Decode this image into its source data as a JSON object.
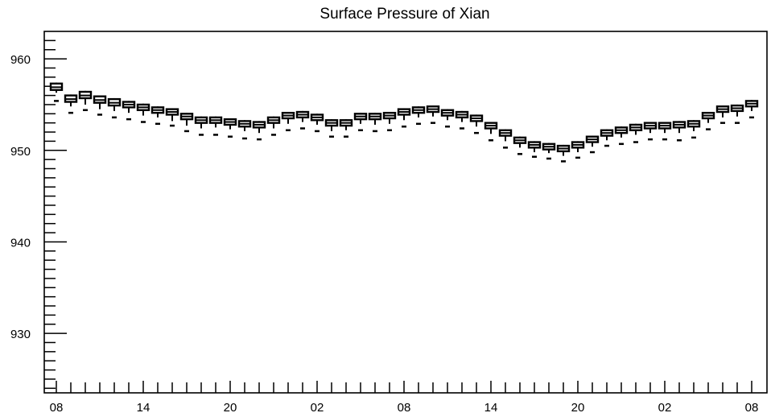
{
  "chart_data": {
    "type": "boxplot",
    "title": "Surface Pressure of Xian",
    "xlabel": "",
    "ylabel": "",
    "ylim": [
      923.5,
      963
    ],
    "y_ticks": [
      930,
      940,
      950,
      960
    ],
    "x_tick_labels": [
      "08",
      "14",
      "20",
      "02",
      "08",
      "14",
      "20",
      "02",
      "08"
    ],
    "x_tick_hours": [
      0,
      6,
      12,
      18,
      24,
      30,
      36,
      42,
      48
    ],
    "grid": false,
    "series": [
      {
        "x_hours": [
          0,
          1,
          2,
          3,
          4,
          5,
          6,
          7,
          8,
          9,
          10,
          11,
          12,
          13,
          14,
          15,
          16,
          17,
          18,
          19,
          20,
          21,
          22,
          23,
          24,
          25,
          26,
          27,
          28,
          29,
          30,
          31,
          32,
          33,
          34,
          35,
          36,
          37,
          38,
          39,
          40,
          41,
          42,
          43,
          44,
          45,
          46,
          47,
          48
        ],
        "median": [
          956.9,
          955.6,
          956.0,
          955.5,
          955.2,
          955.0,
          954.7,
          954.4,
          954.2,
          953.7,
          953.3,
          953.3,
          953.1,
          952.9,
          952.8,
          953.3,
          953.8,
          953.9,
          953.6,
          953.0,
          953.0,
          953.7,
          953.7,
          953.8,
          954.2,
          954.4,
          954.5,
          954.1,
          953.9,
          953.5,
          952.7,
          951.9,
          951.1,
          950.6,
          950.4,
          950.2,
          950.6,
          951.2,
          951.9,
          952.2,
          952.5,
          952.7,
          952.7,
          952.8,
          952.9,
          953.8,
          954.5,
          954.6,
          955.1
        ],
        "q1": [
          956.6,
          955.3,
          955.7,
          955.2,
          954.9,
          954.7,
          954.4,
          954.1,
          953.9,
          953.4,
          953.0,
          953.0,
          952.8,
          952.6,
          952.5,
          953.0,
          953.5,
          953.6,
          953.3,
          952.7,
          952.7,
          953.4,
          953.4,
          953.5,
          953.9,
          954.1,
          954.2,
          953.8,
          953.6,
          953.2,
          952.4,
          951.6,
          950.8,
          950.3,
          950.1,
          949.9,
          950.3,
          950.9,
          951.6,
          951.9,
          952.2,
          952.4,
          952.4,
          952.5,
          952.6,
          953.5,
          954.2,
          954.3,
          954.8
        ],
        "q3": [
          957.3,
          956.0,
          956.4,
          955.9,
          955.6,
          955.3,
          955.0,
          954.7,
          954.5,
          954.0,
          953.6,
          953.6,
          953.4,
          953.2,
          953.1,
          953.6,
          954.1,
          954.2,
          953.9,
          953.3,
          953.3,
          954.0,
          954.0,
          954.1,
          954.5,
          954.7,
          954.8,
          954.4,
          954.2,
          953.8,
          953.0,
          952.2,
          951.4,
          950.9,
          950.7,
          950.5,
          950.9,
          951.5,
          952.2,
          952.5,
          952.8,
          953.0,
          953.0,
          953.1,
          953.2,
          954.1,
          954.8,
          954.9,
          955.4
        ],
        "whisker_low": [
          956.3,
          954.8,
          955.0,
          954.5,
          954.3,
          954.1,
          953.8,
          953.6,
          953.2,
          952.7,
          952.4,
          952.5,
          952.3,
          952.1,
          951.9,
          952.4,
          952.9,
          953.1,
          952.8,
          952.1,
          952.2,
          952.9,
          952.8,
          952.9,
          953.3,
          953.6,
          953.7,
          953.3,
          953.1,
          952.6,
          951.8,
          951.0,
          950.3,
          949.8,
          949.7,
          949.4,
          949.8,
          950.4,
          951.1,
          951.4,
          951.7,
          951.9,
          951.9,
          951.9,
          952.1,
          953.0,
          953.6,
          953.7,
          954.3
        ],
        "whisker_high": [
          957.4,
          956.1,
          956.5,
          956.0,
          955.7,
          955.4,
          955.1,
          954.8,
          954.6,
          954.1,
          953.7,
          953.7,
          953.5,
          953.3,
          953.2,
          953.7,
          954.2,
          954.3,
          954.0,
          953.4,
          953.4,
          954.1,
          954.1,
          954.2,
          954.6,
          954.8,
          954.9,
          954.5,
          954.3,
          953.9,
          953.1,
          952.3,
          951.5,
          951.0,
          950.8,
          950.6,
          951.0,
          951.6,
          952.3,
          952.6,
          952.9,
          953.1,
          953.1,
          953.2,
          953.3,
          954.2,
          954.9,
          955.0,
          955.5
        ],
        "outlier_low": [
          955.4,
          954.1,
          954.4,
          953.9,
          953.6,
          953.4,
          953.1,
          952.9,
          952.7,
          952.1,
          951.7,
          951.7,
          951.5,
          951.3,
          951.2,
          951.7,
          952.2,
          952.4,
          952.1,
          951.5,
          951.5,
          952.2,
          952.1,
          952.2,
          952.6,
          952.9,
          953.0,
          952.6,
          952.4,
          951.9,
          951.1,
          950.3,
          949.6,
          949.3,
          949.1,
          948.8,
          949.2,
          949.8,
          950.5,
          950.7,
          950.9,
          951.2,
          951.2,
          951.1,
          951.4,
          952.3,
          953.0,
          953.0,
          953.6
        ]
      }
    ]
  }
}
